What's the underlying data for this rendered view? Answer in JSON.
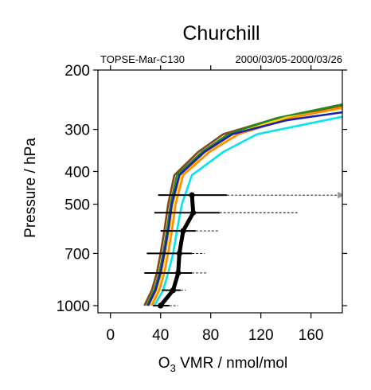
{
  "chart_data": {
    "type": "line",
    "title": "Churchill",
    "subtitle_left": "TOPSE-Mar-C130",
    "subtitle_right": "2000/03/05-2000/03/26",
    "xlabel_main": "O",
    "xlabel_sub": "3",
    "xlabel_rest": " VMR / nmol/mol",
    "ylabel": "Pressure / hPa",
    "xlim": [
      -10,
      185
    ],
    "ylim": [
      1050,
      200
    ],
    "yscale": "log",
    "x_ticks": [
      0,
      40,
      80,
      120,
      160
    ],
    "x_tick_labels": [
      "0",
      "40",
      "80",
      "120",
      "160"
    ],
    "y_ticks": [
      200,
      300,
      400,
      500,
      700,
      1000
    ],
    "y_tick_labels": [
      "200",
      "300",
      "400",
      "500",
      "700",
      "1000"
    ],
    "series": [
      {
        "color": "#8B4513",
        "points": [
          [
            27,
            1000
          ],
          [
            33,
            900
          ],
          [
            37,
            800
          ],
          [
            40,
            700
          ],
          [
            43,
            600
          ],
          [
            46,
            500
          ],
          [
            51,
            410
          ],
          [
            70,
            350
          ],
          [
            90,
            310
          ],
          [
            130,
            280
          ],
          [
            185,
            255
          ]
        ]
      },
      {
        "color": "#228B22",
        "points": [
          [
            29,
            1000
          ],
          [
            35,
            900
          ],
          [
            39,
            800
          ],
          [
            42,
            700
          ],
          [
            45,
            600
          ],
          [
            48,
            500
          ],
          [
            53,
            410
          ],
          [
            73,
            350
          ],
          [
            94,
            310
          ],
          [
            132,
            278
          ],
          [
            185,
            253
          ]
        ]
      },
      {
        "color": "#FFD700",
        "points": [
          [
            31,
            1000
          ],
          [
            37,
            900
          ],
          [
            41,
            800
          ],
          [
            44,
            700
          ],
          [
            47,
            600
          ],
          [
            50,
            500
          ],
          [
            56,
            410
          ],
          [
            76,
            350
          ],
          [
            98,
            310
          ],
          [
            140,
            277
          ],
          [
            185,
            260
          ]
        ]
      },
      {
        "color": "#FF8C00",
        "points": [
          [
            33,
            1000
          ],
          [
            39,
            900
          ],
          [
            43,
            800
          ],
          [
            46,
            700
          ],
          [
            49,
            600
          ],
          [
            52,
            500
          ],
          [
            58,
            410
          ],
          [
            79,
            350
          ],
          [
            102,
            310
          ],
          [
            145,
            277
          ],
          [
            185,
            258
          ]
        ]
      },
      {
        "color": "#1E1EB4",
        "points": [
          [
            30,
            1000
          ],
          [
            36,
            900
          ],
          [
            40,
            800
          ],
          [
            43,
            700
          ],
          [
            46,
            600
          ],
          [
            49,
            500
          ],
          [
            55,
            410
          ],
          [
            75,
            350
          ],
          [
            97,
            310
          ],
          [
            140,
            282
          ],
          [
            185,
            267
          ]
        ]
      },
      {
        "color": "#00E5EE",
        "points": [
          [
            35,
            1000
          ],
          [
            42,
            900
          ],
          [
            46,
            800
          ],
          [
            50,
            700
          ],
          [
            53,
            600
          ],
          [
            57,
            500
          ],
          [
            65,
            410
          ],
          [
            90,
            350
          ],
          [
            117,
            310
          ],
          [
            155,
            290
          ],
          [
            185,
            275
          ]
        ]
      }
    ],
    "median": {
      "color": "#000000",
      "points": [
        [
          40,
          1000
        ],
        [
          50,
          900
        ],
        [
          54,
          800
        ],
        [
          55,
          700
        ],
        [
          58,
          600
        ],
        [
          66,
          530
        ],
        [
          65,
          470
        ]
      ]
    },
    "ranges": [
      {
        "p": 470,
        "min": 38,
        "max": 93,
        "outer_max": 186,
        "arrow": true
      },
      {
        "p": 530,
        "min": 35,
        "max": 87,
        "outer_max": 150,
        "arrow": false
      },
      {
        "p": 600,
        "min": 40,
        "max": 68,
        "outer_max": 86,
        "arrow": false
      },
      {
        "p": 700,
        "min": 29,
        "max": 65,
        "outer_max": 75,
        "arrow": false
      },
      {
        "p": 800,
        "min": 27,
        "max": 65,
        "outer_max": 77,
        "arrow": false
      },
      {
        "p": 900,
        "min": 41,
        "max": 56,
        "outer_max": 60,
        "arrow": false
      },
      {
        "p": 1000,
        "min": 34,
        "max": 47,
        "outer_max": 54,
        "arrow": false
      }
    ]
  }
}
